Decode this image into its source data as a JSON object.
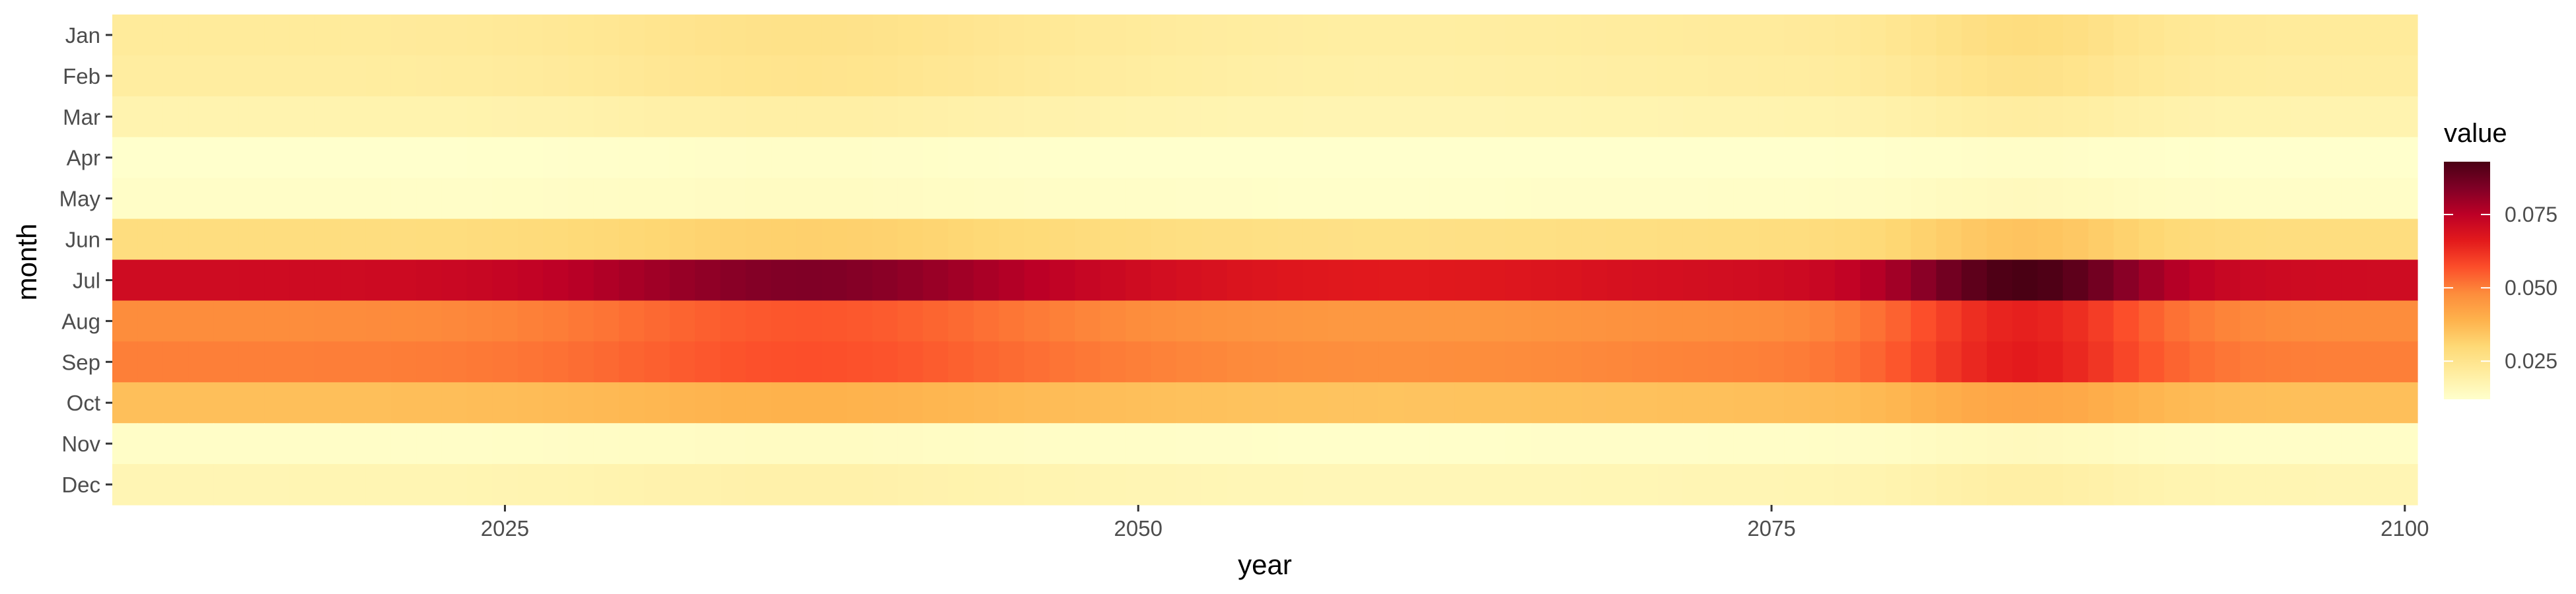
{
  "chart_data": {
    "type": "heatmap",
    "xlabel": "year",
    "ylabel": "month",
    "x_range": [
      2010,
      2100
    ],
    "x_ticks": [
      2025,
      2050,
      2075,
      2100
    ],
    "x_tick_labels": [
      "2025",
      "2050",
      "2075",
      "2100"
    ],
    "months": [
      "Jan",
      "Feb",
      "Mar",
      "Apr",
      "May",
      "Jun",
      "Jul",
      "Aug",
      "Sep",
      "Oct",
      "Nov",
      "Dec"
    ],
    "legend": {
      "title": "value",
      "position": "right",
      "range": [
        0.012,
        0.093
      ],
      "breaks": [
        0.025,
        0.05,
        0.075
      ],
      "break_labels": [
        "0.025",
        "0.050",
        "0.075"
      ]
    },
    "grid": false,
    "color_scale": [
      "#ffffcc",
      "#ffeda0",
      "#fed976",
      "#feb24c",
      "#fd8d3c",
      "#fc4e2a",
      "#e31a1c",
      "#bd0026",
      "#800026",
      "#4a0014"
    ],
    "series": [
      {
        "month": "Jan",
        "base": 0.022,
        "amp1": 0.004,
        "amp2": 0.006
      },
      {
        "month": "Feb",
        "base": 0.021,
        "amp1": 0.004,
        "amp2": 0.005
      },
      {
        "month": "Mar",
        "base": 0.018,
        "amp1": 0.002,
        "amp2": 0.003
      },
      {
        "month": "Apr",
        "base": 0.012,
        "amp1": 0.001,
        "amp2": 0.001
      },
      {
        "month": "May",
        "base": 0.013,
        "amp1": 0.001,
        "amp2": 0.002
      },
      {
        "month": "Jun",
        "base": 0.028,
        "amp1": 0.004,
        "amp2": 0.007
      },
      {
        "month": "Jul",
        "base": 0.071,
        "amp1": 0.013,
        "amp2": 0.022
      },
      {
        "month": "Aug",
        "base": 0.048,
        "amp1": 0.008,
        "amp2": 0.017
      },
      {
        "month": "Sep",
        "base": 0.05,
        "amp1": 0.007,
        "amp2": 0.016
      },
      {
        "month": "Oct",
        "base": 0.036,
        "amp1": 0.003,
        "amp2": 0.006
      },
      {
        "month": "Nov",
        "base": 0.013,
        "amp1": 0.001,
        "amp2": 0.002
      },
      {
        "month": "Dec",
        "base": 0.017,
        "amp1": 0.002,
        "amp2": 0.003
      }
    ]
  }
}
